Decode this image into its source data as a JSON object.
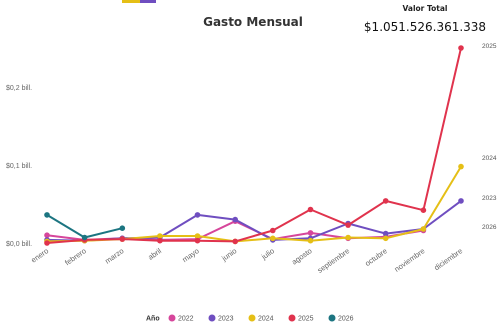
{
  "chart_data": {
    "type": "line",
    "title": "Gasto Mensual",
    "total_label": "Valor Total",
    "total_value": "$1.051.526.361.338",
    "y_ticks": [
      "$0,0 bill.",
      "$0,1 bill.",
      "$0,2 bill."
    ],
    "y_tick_values": [
      0,
      0.1,
      0.2
    ],
    "ylim": [
      0,
      0.26
    ],
    "categories": [
      "enero",
      "febrero",
      "marzo",
      "abril",
      "mayo",
      "junio",
      "julio",
      "agosto",
      "septiembre",
      "octubre",
      "noviembre",
      "diciembre"
    ],
    "legend_title": "Año",
    "series": [
      {
        "name": "2022",
        "color": "#d6469b",
        "values": [
          0.01,
          0.004,
          0.006,
          0.004,
          0.005,
          0.028,
          0.005,
          0.013,
          0.006,
          0.008,
          0.016,
          null
        ]
      },
      {
        "name": "2023",
        "color": "#6f4ec0",
        "values": [
          0.004,
          0.003,
          0.006,
          0.007,
          0.036,
          0.03,
          0.004,
          0.006,
          0.025,
          0.012,
          0.018,
          0.054
        ]
      },
      {
        "name": "2024",
        "color": "#e5bf16",
        "values": [
          0.002,
          0.003,
          0.005,
          0.009,
          0.009,
          0.002,
          0.006,
          0.003,
          0.007,
          0.006,
          0.018,
          0.098
        ]
      },
      {
        "name": "2025",
        "color": "#e0334d",
        "values": [
          0.0,
          0.004,
          0.005,
          0.003,
          0.003,
          0.002,
          0.016,
          0.043,
          0.023,
          0.054,
          0.042,
          0.25
        ]
      },
      {
        "name": "2026",
        "color": "#1c7581",
        "values": [
          0.036,
          0.007,
          0.019,
          null,
          null,
          null,
          null,
          null,
          null,
          null,
          null,
          null
        ]
      }
    ],
    "end_labels": [
      "2025",
      "2024",
      "2023",
      "2026"
    ],
    "grid": false,
    "legend_position": "bottom"
  }
}
